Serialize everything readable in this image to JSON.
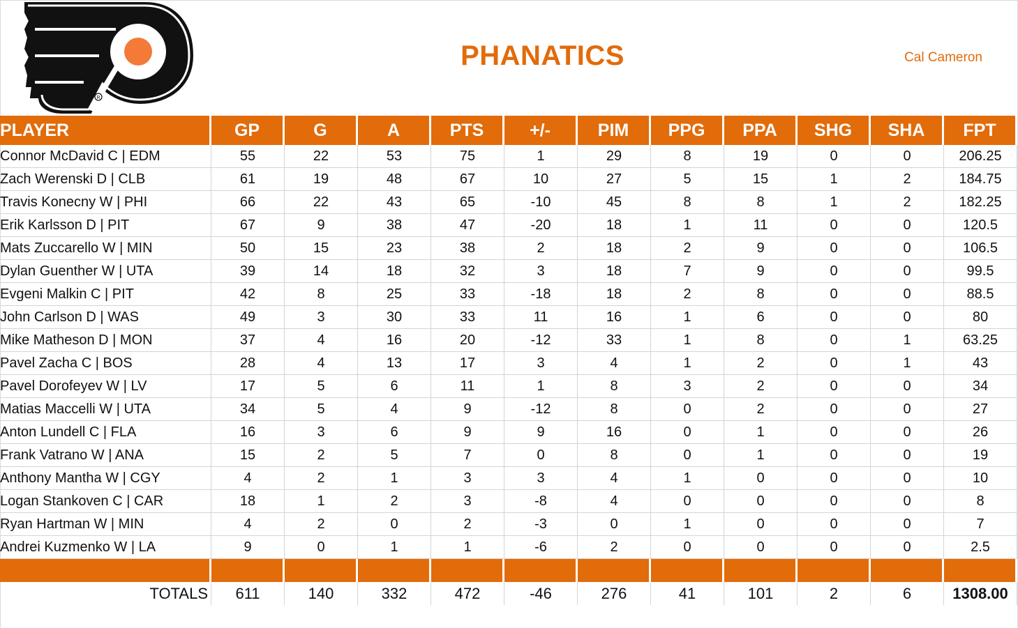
{
  "header": {
    "title": "PHANATICS",
    "owner": "Cal Cameron",
    "logo": "philadelphia-flyers-logo"
  },
  "colors": {
    "accent": "#e26b0a",
    "logo_black": "#111111",
    "logo_orange": "#f47a38"
  },
  "table": {
    "columns": [
      "PLAYER",
      "GP",
      "G",
      "A",
      "PTS",
      "+/-",
      "PIM",
      "PPG",
      "PPA",
      "SHG",
      "SHA",
      "FPT"
    ],
    "rows": [
      [
        "Connor McDavid C | EDM",
        "55",
        "22",
        "53",
        "75",
        "1",
        "29",
        "8",
        "19",
        "0",
        "0",
        "206.25"
      ],
      [
        "Zach Werenski D | CLB",
        "61",
        "19",
        "48",
        "67",
        "10",
        "27",
        "5",
        "15",
        "1",
        "2",
        "184.75"
      ],
      [
        "Travis Konecny W | PHI",
        "66",
        "22",
        "43",
        "65",
        "-10",
        "45",
        "8",
        "8",
        "1",
        "2",
        "182.25"
      ],
      [
        "Erik Karlsson D | PIT",
        "67",
        "9",
        "38",
        "47",
        "-20",
        "18",
        "1",
        "11",
        "0",
        "0",
        "120.5"
      ],
      [
        "Mats Zuccarello W | MIN",
        "50",
        "15",
        "23",
        "38",
        "2",
        "18",
        "2",
        "9",
        "0",
        "0",
        "106.5"
      ],
      [
        "Dylan Guenther W | UTA",
        "39",
        "14",
        "18",
        "32",
        "3",
        "18",
        "7",
        "9",
        "0",
        "0",
        "99.5"
      ],
      [
        "Evgeni Malkin C | PIT",
        "42",
        "8",
        "25",
        "33",
        "-18",
        "18",
        "2",
        "8",
        "0",
        "0",
        "88.5"
      ],
      [
        "John Carlson D | WAS",
        "49",
        "3",
        "30",
        "33",
        "11",
        "16",
        "1",
        "6",
        "0",
        "0",
        "80"
      ],
      [
        "Mike Matheson D | MON",
        "37",
        "4",
        "16",
        "20",
        "-12",
        "33",
        "1",
        "8",
        "0",
        "1",
        "63.25"
      ],
      [
        "Pavel Zacha C | BOS",
        "28",
        "4",
        "13",
        "17",
        "3",
        "4",
        "1",
        "2",
        "0",
        "1",
        "43"
      ],
      [
        "Pavel Dorofeyev W | LV",
        "17",
        "5",
        "6",
        "11",
        "1",
        "8",
        "3",
        "2",
        "0",
        "0",
        "34"
      ],
      [
        "Matias Maccelli W | UTA",
        "34",
        "5",
        "4",
        "9",
        "-12",
        "8",
        "0",
        "2",
        "0",
        "0",
        "27"
      ],
      [
        "Anton Lundell C | FLA",
        "16",
        "3",
        "6",
        "9",
        "9",
        "16",
        "0",
        "1",
        "0",
        "0",
        "26"
      ],
      [
        "Frank Vatrano W | ANA",
        "15",
        "2",
        "5",
        "7",
        "0",
        "8",
        "0",
        "1",
        "0",
        "0",
        "19"
      ],
      [
        "Anthony Mantha W | CGY",
        "4",
        "2",
        "1",
        "3",
        "3",
        "4",
        "1",
        "0",
        "0",
        "0",
        "10"
      ],
      [
        "Logan Stankoven C | CAR",
        "18",
        "1",
        "2",
        "3",
        "-8",
        "4",
        "0",
        "0",
        "0",
        "0",
        "8"
      ],
      [
        "Ryan Hartman W | MIN",
        "4",
        "2",
        "0",
        "2",
        "-3",
        "0",
        "1",
        "0",
        "0",
        "0",
        "7"
      ],
      [
        "Andrei Kuzmenko W | LA",
        "9",
        "0",
        "1",
        "1",
        "-6",
        "2",
        "0",
        "0",
        "0",
        "0",
        "2.5"
      ]
    ],
    "totals": [
      "TOTALS",
      "611",
      "140",
      "332",
      "472",
      "-46",
      "276",
      "41",
      "101",
      "2",
      "6",
      "1308.00"
    ]
  }
}
